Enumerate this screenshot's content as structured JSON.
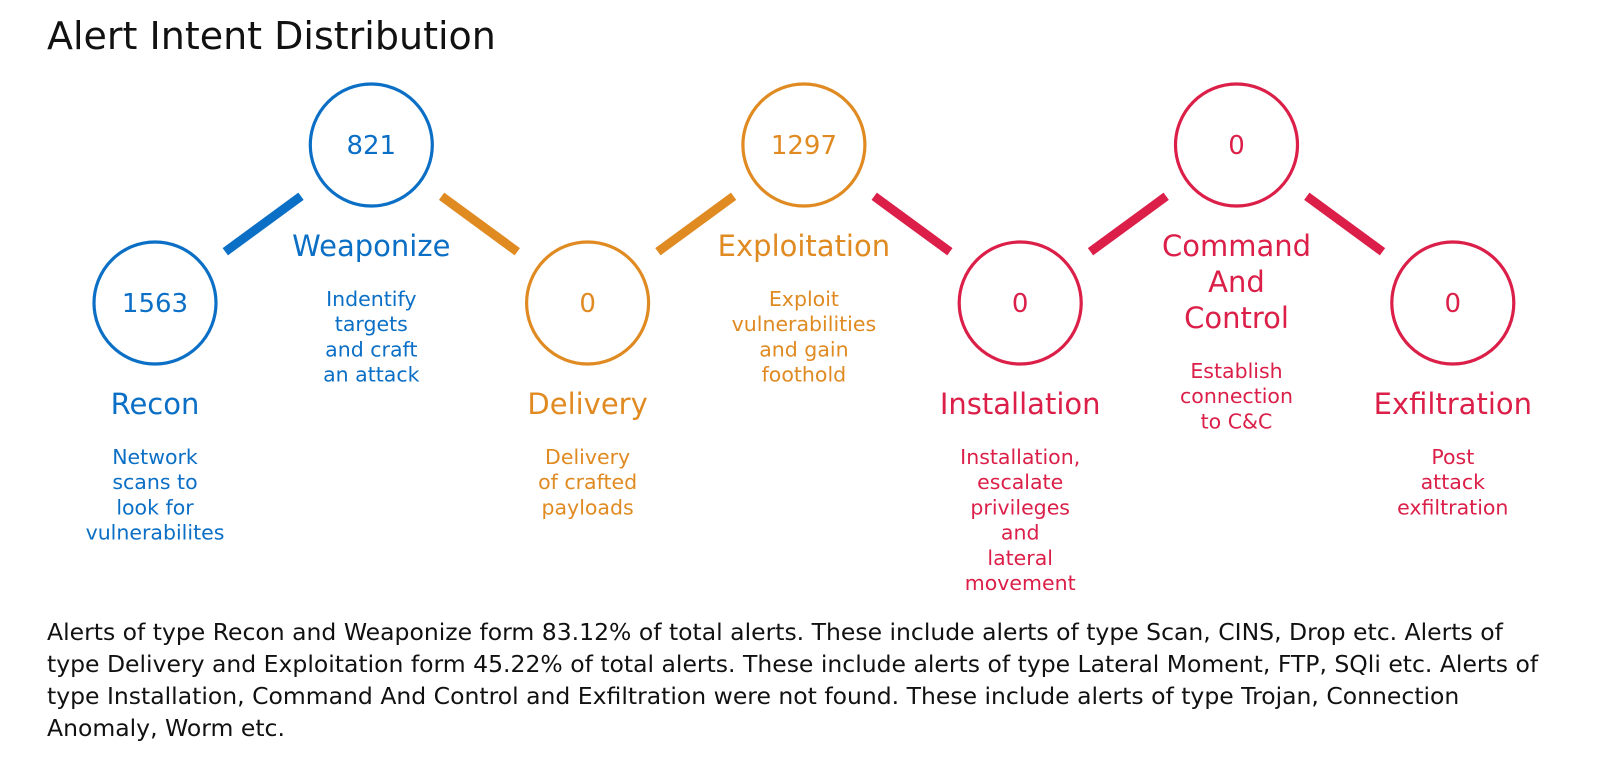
{
  "title": "Alert Intent Distribution",
  "colors": {
    "blue": "#0b6fc6",
    "orange": "#e08a22",
    "red": "#db1f48",
    "text": "#111111"
  },
  "stages": [
    {
      "id": "recon",
      "count": "1563",
      "label": "Recon",
      "label_lines": [
        "Recon"
      ],
      "desc_lines": [
        "Network",
        "scans to",
        "look for",
        "vulnerabilites"
      ],
      "color": "#0b6fc6",
      "position": "low"
    },
    {
      "id": "weaponize",
      "count": "821",
      "label": "Weaponize",
      "label_lines": [
        "Weaponize"
      ],
      "desc_lines": [
        "Indentify",
        "targets",
        "and craft",
        "an attack"
      ],
      "color": "#0b6fc6",
      "position": "high"
    },
    {
      "id": "delivery",
      "count": "0",
      "label": "Delivery",
      "label_lines": [
        "Delivery"
      ],
      "desc_lines": [
        "Delivery",
        "of crafted",
        "payloads"
      ],
      "color": "#e08a22",
      "position": "low"
    },
    {
      "id": "exploitation",
      "count": "1297",
      "label": "Exploitation",
      "label_lines": [
        "Exploitation"
      ],
      "desc_lines": [
        "Exploit",
        "vulnerabilities",
        "and gain",
        "foothold"
      ],
      "color": "#e08a22",
      "position": "high"
    },
    {
      "id": "installation",
      "count": "0",
      "label": "Installation",
      "label_lines": [
        "Installation"
      ],
      "desc_lines": [
        "Installation,",
        "escalate",
        "privileges",
        "and",
        "lateral",
        "movement"
      ],
      "color": "#db1f48",
      "position": "low"
    },
    {
      "id": "command-and-control",
      "count": "0",
      "label": "Command And Control",
      "label_lines": [
        "Command",
        "And",
        "Control"
      ],
      "desc_lines": [
        "Establish",
        "connection",
        "to C&C"
      ],
      "color": "#db1f48",
      "position": "high"
    },
    {
      "id": "exfiltration",
      "count": "0",
      "label": "Exfiltration",
      "label_lines": [
        "Exfiltration"
      ],
      "desc_lines": [
        "Post",
        "attack",
        "exfiltration"
      ],
      "color": "#db1f48",
      "position": "low"
    }
  ],
  "connectors": [
    {
      "from": "recon",
      "to": "weaponize",
      "color": "#0b6fc6"
    },
    {
      "from": "weaponize",
      "to": "delivery",
      "color": "#e08a22"
    },
    {
      "from": "delivery",
      "to": "exploitation",
      "color": "#e08a22"
    },
    {
      "from": "exploitation",
      "to": "installation",
      "color": "#db1f48"
    },
    {
      "from": "installation",
      "to": "command-and-control",
      "color": "#db1f48"
    },
    {
      "from": "command-and-control",
      "to": "exfiltration",
      "color": "#db1f48"
    }
  ],
  "summary": "Alerts of type Recon and Weaponize form 83.12% of total alerts. These include alerts of type Scan, CINS, Drop etc. Alerts of type Delivery and Exploitation form 45.22% of total alerts. These include alerts of type Lateral Moment, FTP, SQli etc. Alerts of type Installation, Command And Control and Exfiltration were not found. These include alerts of type Trojan, Connection Anomaly, Worm etc."
}
